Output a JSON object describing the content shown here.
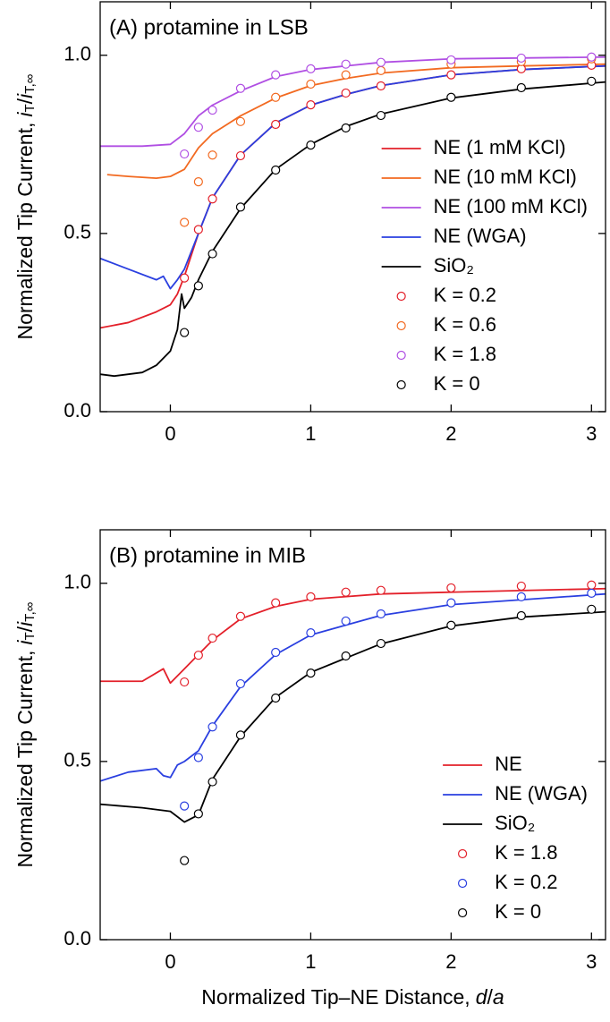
{
  "chart_data": [
    {
      "type": "line",
      "title": "(A) protamine in LSB",
      "ylabel": [
        "Normalized Tip Current,",
        "i",
        "T",
        "/",
        "i",
        "T,∞"
      ],
      "xlim": [
        -0.5,
        3.1
      ],
      "xticks": [
        0,
        1,
        2,
        3
      ],
      "ylim": [
        0,
        1.15
      ],
      "yticks": [
        {
          "value": 0,
          "label": "0.0"
        },
        {
          "value": 0.5,
          "label": "0.5"
        },
        {
          "value": 1,
          "label": "1.0"
        }
      ],
      "legend": "lower right",
      "series": [
        {
          "name": "NE (1 mM KCl)",
          "color": "#e3202a",
          "mode": "line",
          "x": [
            -0.5,
            -0.3,
            -0.1,
            0,
            0.05,
            0.1,
            0.2,
            0.3,
            0.5,
            0.75,
            1,
            1.25,
            1.5,
            2,
            2.5,
            3.1
          ],
          "values": [
            0.235,
            0.25,
            0.28,
            0.3,
            0.33,
            0.38,
            0.5,
            0.6,
            0.72,
            0.81,
            0.86,
            0.89,
            0.915,
            0.945,
            0.96,
            0.97
          ]
        },
        {
          "name": "NE (10 mM KCl)",
          "color": "#f26a21",
          "mode": "line",
          "x": [
            -0.45,
            -0.3,
            -0.1,
            0,
            0.1,
            0.2,
            0.3,
            0.5,
            0.75,
            1,
            1.25,
            1.5,
            2,
            2.5,
            3.1
          ],
          "values": [
            0.665,
            0.66,
            0.655,
            0.66,
            0.68,
            0.74,
            0.78,
            0.83,
            0.88,
            0.915,
            0.935,
            0.95,
            0.965,
            0.97,
            0.975
          ]
        },
        {
          "name": "NE (100 mM KCl)",
          "color": "#b04fe3",
          "mode": "line",
          "x": [
            -0.5,
            -0.2,
            0,
            0.1,
            0.2,
            0.3,
            0.5,
            0.75,
            1,
            1.5,
            2,
            3.1
          ],
          "values": [
            0.745,
            0.745,
            0.75,
            0.78,
            0.83,
            0.86,
            0.9,
            0.94,
            0.96,
            0.98,
            0.99,
            0.995
          ]
        },
        {
          "name": "NE (WGA)",
          "color": "#2a3fe0",
          "mode": "line",
          "x": [
            -0.5,
            -0.3,
            -0.1,
            -0.05,
            0,
            0.05,
            0.1,
            0.2,
            0.3,
            0.5,
            0.75,
            1,
            1.25,
            1.5,
            2,
            2.5,
            3.1
          ],
          "values": [
            0.43,
            0.4,
            0.37,
            0.38,
            0.345,
            0.37,
            0.4,
            0.5,
            0.6,
            0.72,
            0.81,
            0.86,
            0.89,
            0.915,
            0.945,
            0.96,
            0.97
          ]
        },
        {
          "name": "SiO₂",
          "color": "#000000",
          "mode": "line",
          "x": [
            -0.5,
            -0.4,
            -0.2,
            -0.1,
            0,
            0.05,
            0.08,
            0.1,
            0.15,
            0.2,
            0.3,
            0.5,
            0.75,
            1,
            1.25,
            1.5,
            2,
            2.5,
            3.1
          ],
          "values": [
            0.105,
            0.1,
            0.11,
            0.13,
            0.17,
            0.23,
            0.33,
            0.29,
            0.32,
            0.37,
            0.45,
            0.57,
            0.68,
            0.75,
            0.8,
            0.835,
            0.88,
            0.905,
            0.925
          ]
        },
        {
          "name": "K = 0.2",
          "color": "#e3202a",
          "mode": "markers",
          "x": [
            0.1,
            0.2,
            0.3,
            0.5,
            0.75,
            1,
            1.25,
            1.5,
            2,
            2.5,
            3
          ],
          "values": [
            0.375,
            0.511,
            0.597,
            0.718,
            0.806,
            0.861,
            0.894,
            0.914,
            0.945,
            0.962,
            0.972
          ]
        },
        {
          "name": "K = 0.6",
          "color": "#f26a21",
          "mode": "markers",
          "x": [
            0.1,
            0.2,
            0.3,
            0.5,
            0.75,
            1,
            1.25,
            1.5,
            2,
            2.5,
            3
          ],
          "values": [
            0.531,
            0.645,
            0.72,
            0.814,
            0.882,
            0.919,
            0.945,
            0.957,
            0.975,
            0.982,
            0.99
          ]
        },
        {
          "name": "K = 1.8",
          "color": "#b04fe3",
          "mode": "markers",
          "x": [
            0.1,
            0.2,
            0.3,
            0.5,
            0.75,
            1,
            1.25,
            1.5,
            2,
            2.5,
            3
          ],
          "values": [
            0.723,
            0.798,
            0.846,
            0.907,
            0.945,
            0.962,
            0.975,
            0.98,
            0.987,
            0.992,
            0.995
          ]
        },
        {
          "name": "K = 0",
          "color": "#000000",
          "mode": "markers",
          "x": [
            0.1,
            0.2,
            0.3,
            0.5,
            0.75,
            1,
            1.25,
            1.5,
            2,
            2.5,
            3
          ],
          "values": [
            0.222,
            0.353,
            0.443,
            0.574,
            0.678,
            0.748,
            0.796,
            0.831,
            0.882,
            0.909,
            0.927
          ]
        }
      ]
    },
    {
      "type": "line",
      "title": "(B) protamine in MIB",
      "ylabel": [
        "Normalized Tip Current,",
        "i",
        "T",
        "/",
        "i",
        "T,∞"
      ],
      "xlabel": [
        "Normalized Tip–NE Distance,",
        "d",
        "/",
        "a"
      ],
      "xlim": [
        -0.5,
        3.1
      ],
      "xticks": [
        0,
        1,
        2,
        3
      ],
      "ylim": [
        0,
        1.15
      ],
      "yticks": [
        {
          "value": 0,
          "label": "0.0"
        },
        {
          "value": 0.5,
          "label": "0.5"
        },
        {
          "value": 1,
          "label": "1.0"
        }
      ],
      "legend": "lower right",
      "series": [
        {
          "name": "NE",
          "color": "#e3202a",
          "mode": "line",
          "x": [
            -0.5,
            -0.2,
            -0.05,
            0,
            0.1,
            0.2,
            0.3,
            0.5,
            0.75,
            1,
            1.5,
            2,
            3.1
          ],
          "values": [
            0.725,
            0.725,
            0.76,
            0.72,
            0.76,
            0.8,
            0.84,
            0.9,
            0.935,
            0.955,
            0.97,
            0.975,
            0.985
          ]
        },
        {
          "name": "NE (WGA)",
          "color": "#2a3fe0",
          "mode": "line",
          "x": [
            -0.5,
            -0.3,
            -0.1,
            -0.05,
            0,
            0.05,
            0.1,
            0.2,
            0.3,
            0.5,
            0.75,
            1,
            1.5,
            2,
            3.1
          ],
          "values": [
            0.445,
            0.47,
            0.48,
            0.46,
            0.455,
            0.49,
            0.5,
            0.53,
            0.6,
            0.71,
            0.8,
            0.855,
            0.91,
            0.94,
            0.97
          ]
        },
        {
          "name": "SiO₂",
          "color": "#000000",
          "mode": "line",
          "x": [
            -0.5,
            -0.2,
            0,
            0.1,
            0.2,
            0.3,
            0.5,
            0.75,
            1,
            1.5,
            2,
            2.5,
            3.1
          ],
          "values": [
            0.38,
            0.37,
            0.36,
            0.33,
            0.35,
            0.45,
            0.57,
            0.68,
            0.75,
            0.83,
            0.88,
            0.905,
            0.92
          ]
        },
        {
          "name": "K = 1.8",
          "color": "#e3202a",
          "mode": "markers",
          "x": [
            0.1,
            0.2,
            0.3,
            0.5,
            0.75,
            1,
            1.25,
            1.5,
            2,
            2.5,
            3
          ],
          "values": [
            0.723,
            0.798,
            0.846,
            0.907,
            0.945,
            0.962,
            0.975,
            0.98,
            0.987,
            0.992,
            0.995
          ]
        },
        {
          "name": "K = 0.2",
          "color": "#2a3fe0",
          "mode": "markers",
          "x": [
            0.1,
            0.2,
            0.3,
            0.5,
            0.75,
            1,
            1.25,
            1.5,
            2,
            2.5,
            3
          ],
          "values": [
            0.375,
            0.511,
            0.597,
            0.718,
            0.806,
            0.861,
            0.894,
            0.914,
            0.945,
            0.962,
            0.972
          ]
        },
        {
          "name": "K = 0",
          "color": "#000000",
          "mode": "markers",
          "x": [
            0.1,
            0.2,
            0.3,
            0.5,
            0.75,
            1,
            1.25,
            1.5,
            2,
            2.5,
            3
          ],
          "values": [
            0.222,
            0.353,
            0.443,
            0.574,
            0.678,
            0.748,
            0.796,
            0.831,
            0.882,
            0.909,
            0.927
          ]
        }
      ]
    }
  ]
}
